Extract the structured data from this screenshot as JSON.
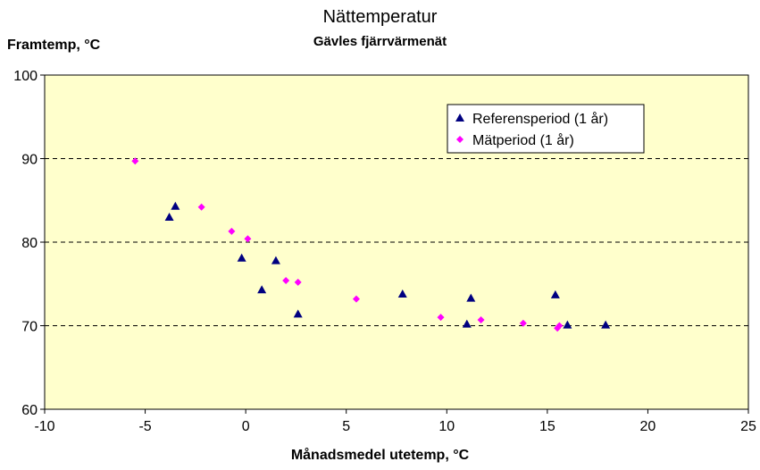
{
  "chart_data": {
    "type": "scatter",
    "title": "Nättemperatur",
    "subtitle": "Gävles fjärrvärmenät",
    "xlabel": "Månadsmedel utetemp, °C",
    "ylabel": "Framtemp, °C",
    "xlim": [
      -10,
      25
    ],
    "ylim": [
      60,
      100
    ],
    "xticks": [
      -10,
      -5,
      0,
      5,
      10,
      15,
      20,
      25
    ],
    "yticks": [
      60,
      70,
      80,
      90,
      100
    ],
    "grid": "horizontal dashed at 70, 80, 90",
    "legend_position": "top-right",
    "plot_background": "#ffffcc",
    "series": [
      {
        "name": "Referensperiod (1 år)",
        "marker": "triangle",
        "color": "#000080",
        "points": [
          {
            "x": -3.8,
            "y": 83.0
          },
          {
            "x": -3.5,
            "y": 84.3
          },
          {
            "x": -0.2,
            "y": 78.1
          },
          {
            "x": 0.8,
            "y": 74.3
          },
          {
            "x": 1.5,
            "y": 77.8
          },
          {
            "x": 2.6,
            "y": 71.4
          },
          {
            "x": 7.8,
            "y": 73.8
          },
          {
            "x": 11.0,
            "y": 70.2
          },
          {
            "x": 11.2,
            "y": 73.3
          },
          {
            "x": 15.4,
            "y": 73.7
          },
          {
            "x": 16.0,
            "y": 70.1
          },
          {
            "x": 17.9,
            "y": 70.1
          }
        ]
      },
      {
        "name": "Mätperiod (1 år)",
        "marker": "diamond",
        "color": "#ff00ff",
        "points": [
          {
            "x": -5.5,
            "y": 89.7
          },
          {
            "x": -2.2,
            "y": 84.2
          },
          {
            "x": -0.7,
            "y": 81.3
          },
          {
            "x": 0.1,
            "y": 80.4
          },
          {
            "x": 2.0,
            "y": 75.4
          },
          {
            "x": 2.6,
            "y": 75.2
          },
          {
            "x": 5.5,
            "y": 73.2
          },
          {
            "x": 9.7,
            "y": 71.0
          },
          {
            "x": 11.7,
            "y": 70.7
          },
          {
            "x": 13.8,
            "y": 70.3
          },
          {
            "x": 15.5,
            "y": 69.7
          },
          {
            "x": 15.6,
            "y": 70.0
          }
        ]
      }
    ]
  }
}
